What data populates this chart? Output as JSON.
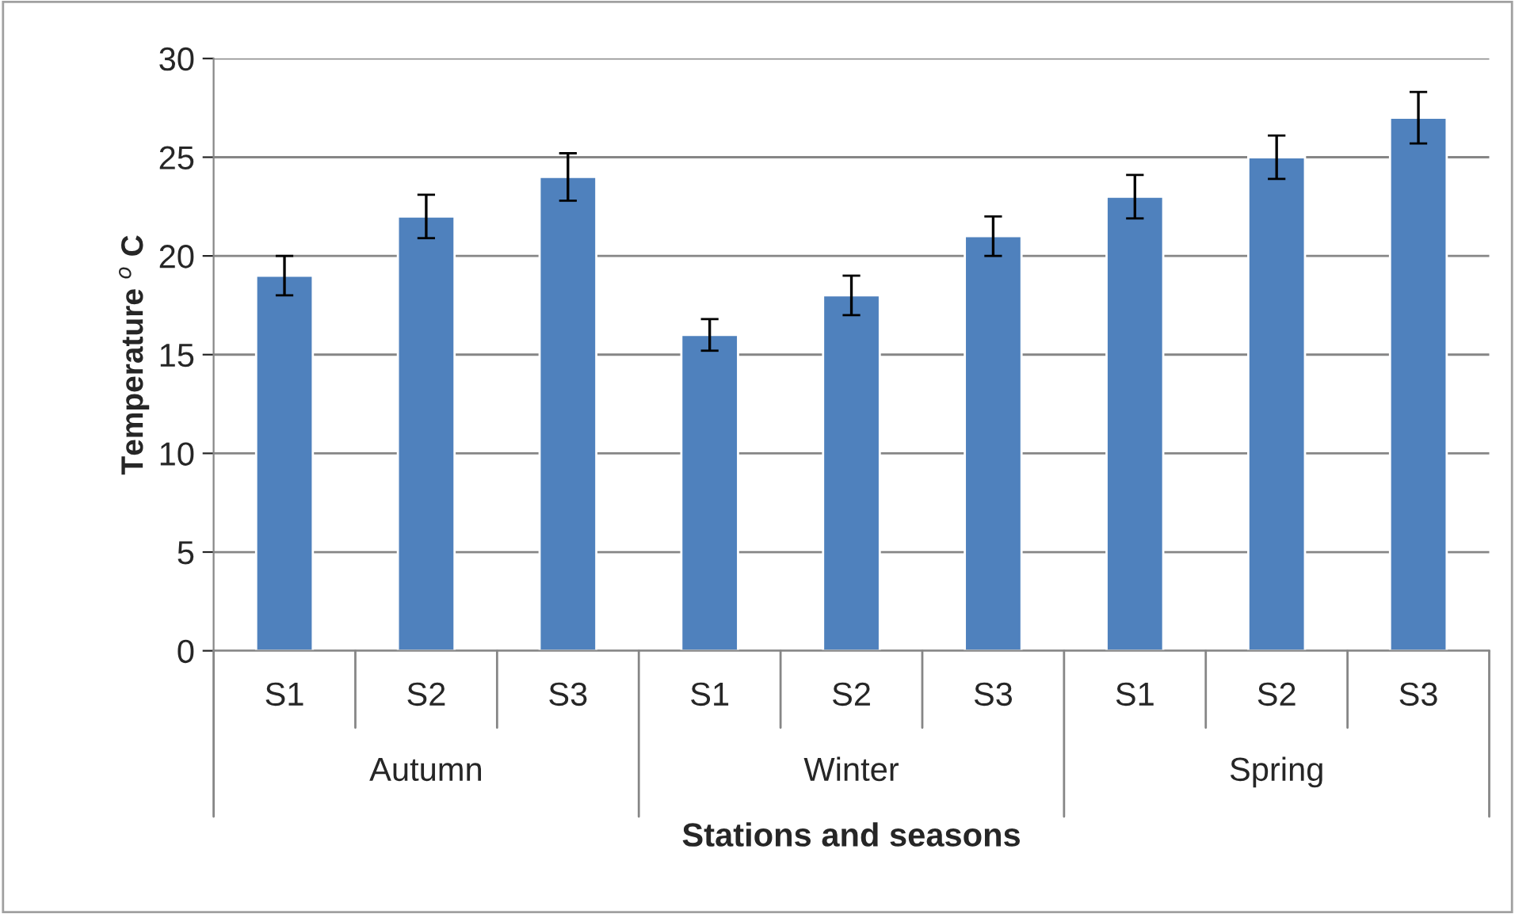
{
  "chart_data": {
    "type": "bar",
    "xlabel": "Stations and seasons",
    "ylabel": "Temperature $^{o}$ C",
    "categories": [
      "S1",
      "S2",
      "S3",
      "S1",
      "S2",
      "S3",
      "S1",
      "S2",
      "S3"
    ],
    "values": [
      19,
      22,
      24,
      16,
      18,
      21,
      23,
      25,
      27
    ],
    "errors": [
      1,
      1.1,
      1.2,
      0.8,
      1,
      1,
      1.1,
      1.1,
      1.3
    ],
    "color": "#4f81bd",
    "annotations": [
      "Autumn",
      "Winter",
      "Spring"
    ],
    "ylim": [
      0,
      30
    ],
    "yticks": [
      0,
      5,
      10,
      15,
      20,
      25,
      30
    ],
    "grid": "y",
    "legend": false
  }
}
